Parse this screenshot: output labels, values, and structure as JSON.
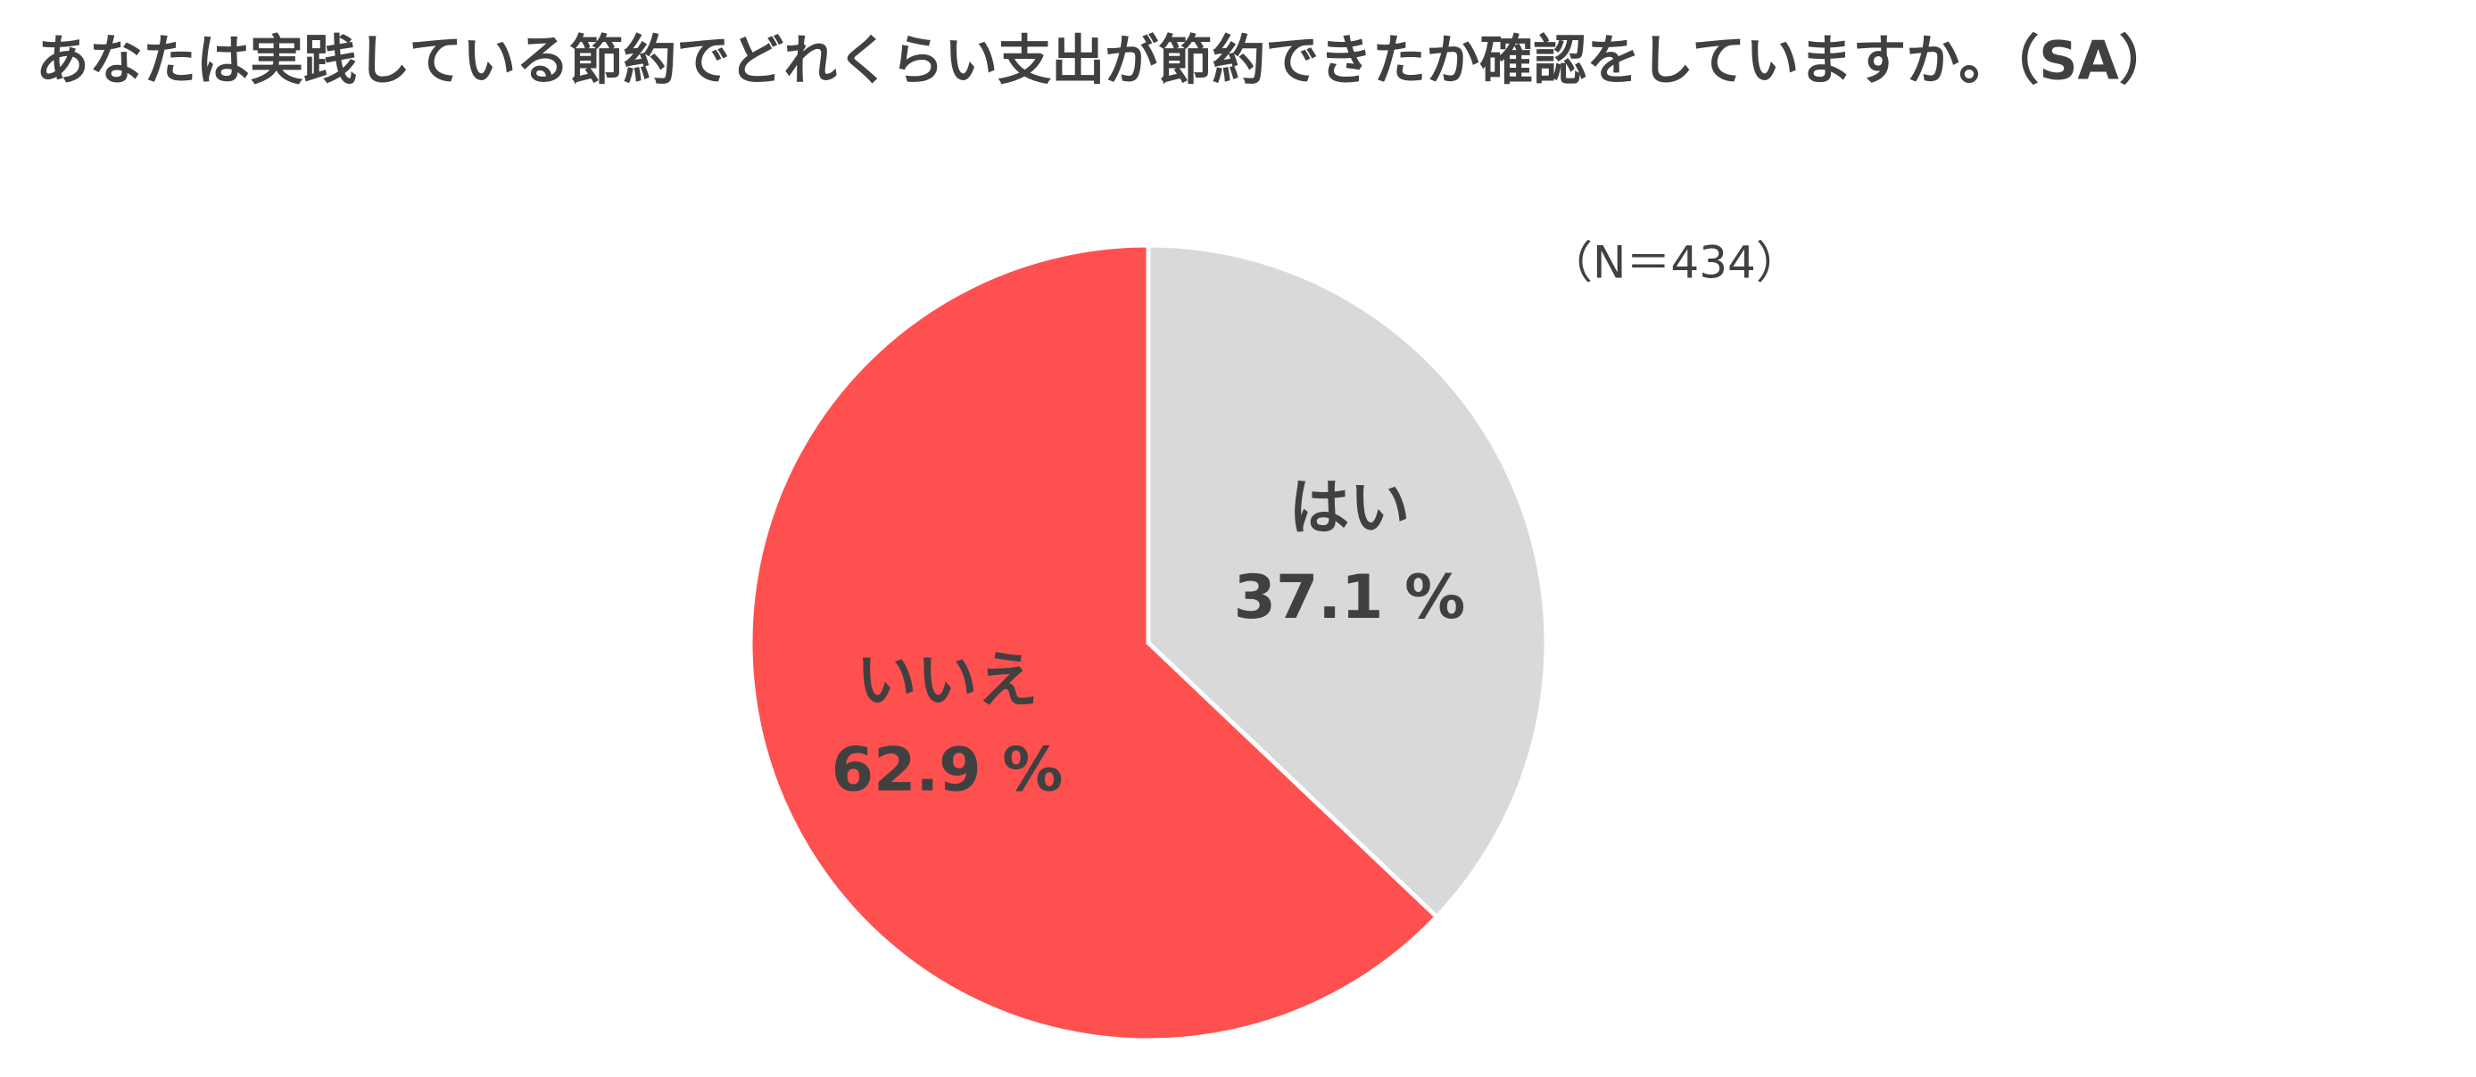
{
  "chart_data": {
    "type": "pie",
    "title": "あなたは実践している節約でどれくらい支出が節約できたか確認をしていますか。（SA）",
    "subtitle": "（N＝434）",
    "categories": [
      "はい",
      "いいえ"
    ],
    "values": [
      37.1,
      62.9
    ],
    "value_labels": [
      "37.1 %",
      "62.9 %"
    ],
    "colors": [
      "#d9d9d9",
      "#ff5050"
    ]
  }
}
